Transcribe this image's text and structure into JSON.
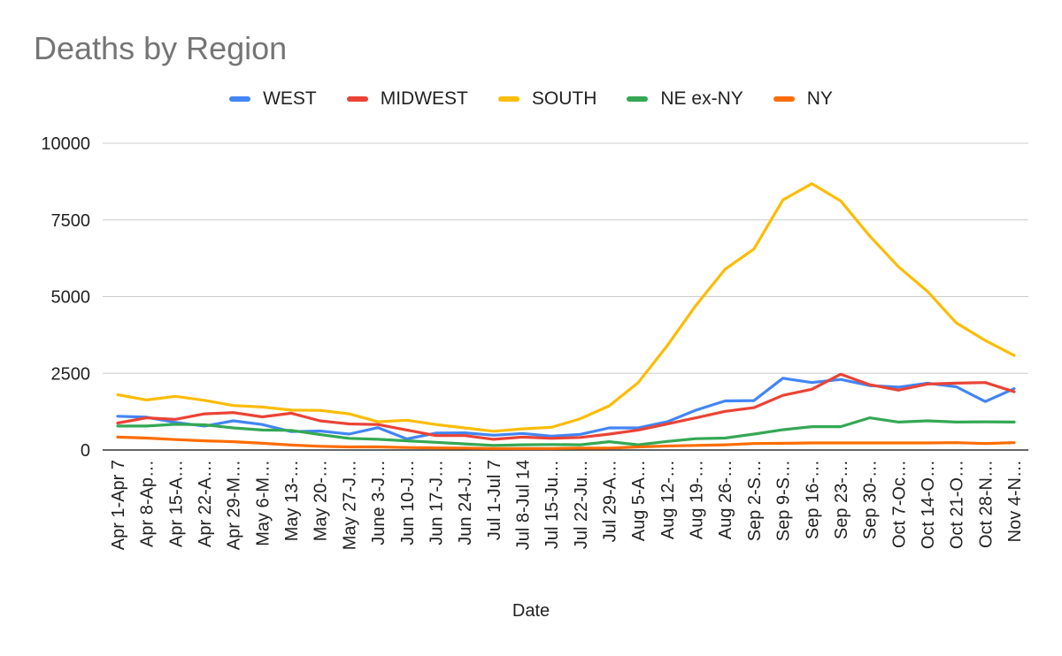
{
  "chart_data": {
    "type": "line",
    "title": "Deaths by Region",
    "xlabel": "Date",
    "ylabel": "",
    "ylim": [
      0,
      10000
    ],
    "yticks": [
      0,
      2500,
      5000,
      7500,
      10000
    ],
    "grid": true,
    "legend_position": "top",
    "categories": [
      "Apr 1-Apr 7",
      "Apr 8-Ap…",
      "Apr 15-A…",
      "Apr 22-A…",
      "Apr 29-M…",
      "May 6-M…",
      "May 13-…",
      "May 20-…",
      "May 27-J…",
      "June 3-J…",
      "Jun 10-J…",
      "Jun 17-J…",
      "Jun 24-J…",
      "Jul 1-Jul 7",
      "Jul 8-Jul 14",
      "Jul 15-Ju…",
      "Jul 22-Ju…",
      "Jul 29-A…",
      "Aug 5-A…",
      "Aug 12-…",
      "Aug 19-…",
      "Aug 26-…",
      "Sep 2-S…",
      "Sep 9-S…",
      "Sep 16-…",
      "Sep 23-…",
      "Sep 30-…",
      "Oct 7-Oc…",
      "Oct 14-O…",
      "Oct 21-O…",
      "Oct 28-N…",
      "Nov 4-N…"
    ],
    "series": [
      {
        "name": "WEST",
        "color": "#4285f4",
        "values": [
          1100,
          1070,
          900,
          780,
          950,
          830,
          600,
          620,
          520,
          730,
          360,
          550,
          560,
          480,
          540,
          450,
          510,
          720,
          720,
          920,
          1300,
          1600,
          1610,
          2340,
          2200,
          2300,
          2100,
          2050,
          2180,
          2060,
          1580,
          2000
        ]
      },
      {
        "name": "MIDWEST",
        "color": "#ea4335",
        "values": [
          880,
          1050,
          1000,
          1180,
          1220,
          1080,
          1200,
          950,
          850,
          830,
          650,
          470,
          470,
          350,
          420,
          380,
          410,
          520,
          650,
          850,
          1050,
          1260,
          1380,
          1780,
          1980,
          2470,
          2130,
          1950,
          2150,
          2180,
          2200,
          1900
        ]
      },
      {
        "name": "SOUTH",
        "color": "#fbbc04",
        "values": [
          1800,
          1630,
          1750,
          1620,
          1450,
          1400,
          1300,
          1290,
          1180,
          920,
          970,
          830,
          720,
          610,
          690,
          740,
          1020,
          1440,
          2200,
          3400,
          4720,
          5890,
          6550,
          8150,
          8680,
          8120,
          6980,
          5970,
          5170,
          4140,
          3570,
          3080
        ]
      },
      {
        "name": "NE ex-NY",
        "color": "#34a853",
        "values": [
          780,
          780,
          840,
          820,
          720,
          650,
          640,
          500,
          380,
          350,
          300,
          250,
          200,
          150,
          170,
          180,
          170,
          270,
          170,
          280,
          370,
          390,
          520,
          660,
          760,
          760,
          1050,
          910,
          950,
          910,
          920,
          910
        ]
      },
      {
        "name": "NY",
        "color": "#ff6d01",
        "values": [
          420,
          390,
          340,
          300,
          270,
          220,
          160,
          120,
          100,
          100,
          80,
          70,
          60,
          50,
          50,
          50,
          60,
          60,
          100,
          130,
          150,
          170,
          210,
          220,
          230,
          230,
          230,
          230,
          230,
          240,
          210,
          240
        ]
      }
    ]
  }
}
